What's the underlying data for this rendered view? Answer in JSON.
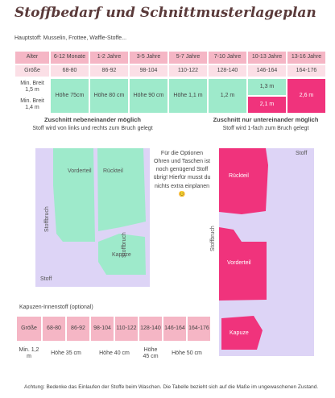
{
  "title": "Stoffbedarf und Schnittmusterlageplan",
  "subtitle": "Hauptstoff: Musselin, Frottee, Waffle-Stoffe...",
  "table": {
    "columns": [
      "Alter",
      "6-12 Monate",
      "1-2 Jahre",
      "3-5 Jahre",
      "5-7 Jahre",
      "7-10 Jahre",
      "10-13 Jahre",
      "13-16 Jahre"
    ],
    "sizes": [
      "Größe",
      "68-80",
      "86-92",
      "98-104",
      "110-122",
      "128-140",
      "146-164",
      "164-176"
    ],
    "row_labels": [
      "Min. Breit 1,5 m",
      "Min. Breit 1,4 m"
    ],
    "cells": [
      "Höhe 75cm",
      "Höhe 80 cm",
      "Höhe 90 cm",
      "Höhe 1,1 m",
      "1,2 m",
      "1,3 m",
      "2,1 m",
      "2,6 m"
    ]
  },
  "left": {
    "heading": "Zuschnitt nebeneinander möglich",
    "subheading": "Stoff wird von links und rechts zum Bruch gelegt",
    "pieces": [
      "Vorderteil",
      "Rückteil",
      "Kapuze"
    ],
    "fold": [
      "Stoffbruch",
      "Stoffbruch"
    ],
    "fabric": "Stoff"
  },
  "note": "Für die Optionen Ohren und Taschen ist noch genügend Stoff übrig! Hierfür musst du nichts extra einplanen 😊",
  "right": {
    "heading": "Zuschnitt nur untereinander möglich",
    "subheading": "Stoff wird 1-fach zum Bruch gelegt",
    "pieces": [
      "Rückteil",
      "Vorderteil",
      "Kapuze"
    ],
    "fold": [
      "Stoffbruch"
    ],
    "fabric": "Stoff"
  },
  "hood_table": {
    "title": "Kapuzen-Innenstoff (optional)",
    "header": [
      "Größe",
      "68-80",
      "86-92",
      "98-104",
      "110-122",
      "128-140",
      "146-164",
      "164-176"
    ],
    "row_label": "Min. 1,2 m",
    "cells": [
      "Höhe 35 cm",
      "Höhe 40 cm",
      "Höhe 45 cm",
      "Höhe 50 cm"
    ]
  },
  "footer": "Achtung: Bedenke das Einlaufen der Stoffe beim Waschen. Die Tabelle bezieht sich auf die Maße im ungewaschenen Zustand."
}
